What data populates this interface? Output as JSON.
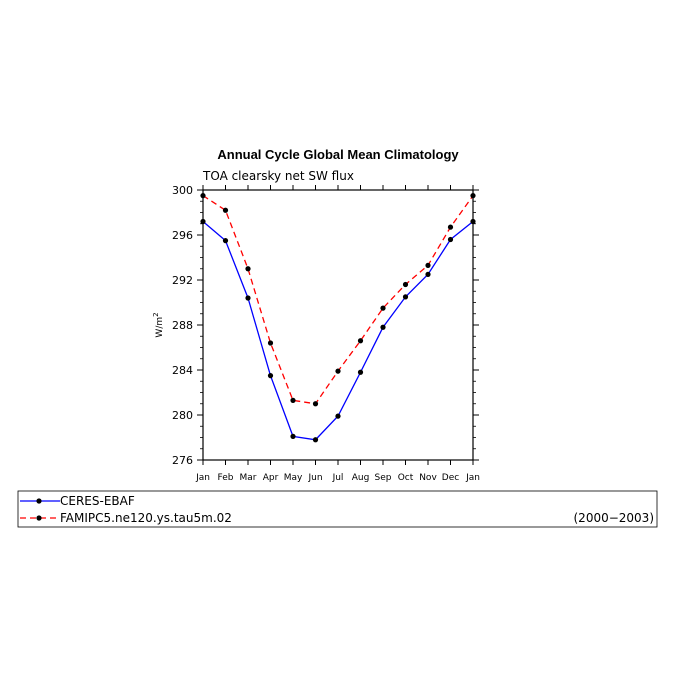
{
  "chart_data": {
    "type": "line",
    "title": "Annual Cycle Global Mean Climatology",
    "subtitle": "TOA clearsky net SW flux",
    "ylabel": "W/m",
    "ylabel_superscript": "2",
    "ylim": [
      276,
      300
    ],
    "yticks": [
      276,
      280,
      284,
      288,
      292,
      296,
      300
    ],
    "categories": [
      "Jan",
      "Feb",
      "Mar",
      "Apr",
      "May",
      "Jun",
      "Jul",
      "Aug",
      "Sep",
      "Oct",
      "Nov",
      "Dec",
      "Jan"
    ],
    "series": [
      {
        "name": "CERES-EBAF",
        "color": "#0000ff",
        "dash": "solid",
        "values": [
          297.2,
          295.5,
          290.4,
          283.5,
          278.1,
          277.8,
          279.9,
          283.8,
          287.8,
          290.5,
          292.5,
          295.6,
          297.2
        ]
      },
      {
        "name": "FAMIPC5.ne120.ys.tau5m.02",
        "color": "#ff0000",
        "dash": "dashed",
        "values": [
          299.5,
          298.2,
          293.0,
          286.4,
          281.3,
          281.0,
          283.9,
          286.6,
          289.5,
          291.6,
          293.3,
          296.7,
          299.5
        ]
      }
    ],
    "legend_placement": "bottom",
    "period": "(2000−2003)"
  }
}
